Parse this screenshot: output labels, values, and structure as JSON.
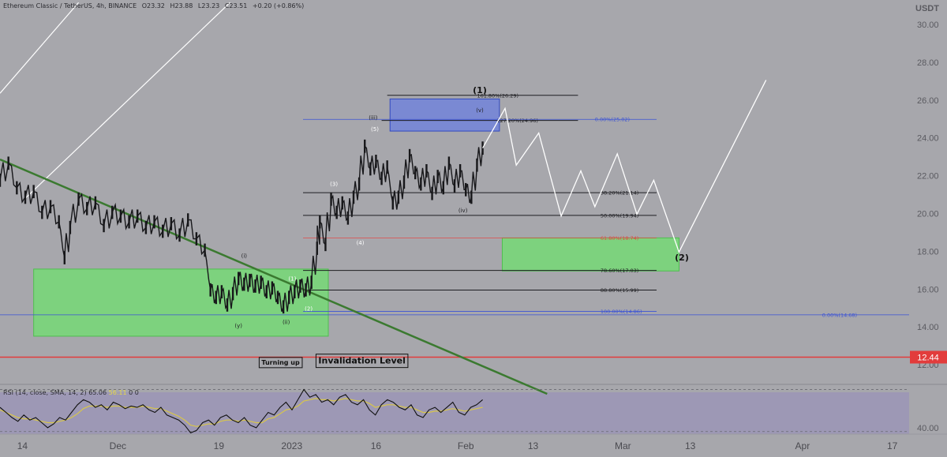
{
  "header": {
    "symbol": "Ethereum Classic / TetherUS, 4h, BINANCE",
    "o": "O23.32",
    "h": "H23.88",
    "l": "L23.23",
    "c": "C23.51",
    "change": "+0.20 (+0.86%)"
  },
  "rsi_header": {
    "label": "RSI (14, close, SMA, 14, 2)",
    "v1": "65.06",
    "v2": "56.11",
    "v3": "0",
    "v4": "0"
  },
  "colors": {
    "background": "#a7a7ac",
    "candle": "#17171a",
    "fib_line": "#1e1e22",
    "fib_blue": "#3a52d6",
    "fib_red": "#e04848",
    "trendline": "#3b7a30",
    "green_zone": "#6fe06f",
    "blue_zone": "#6b7fe0",
    "invalidation": "#e23c3c",
    "projection": "#ffffff",
    "rsi_panel": "#9d98b5",
    "rsi_signal": "#d8c64a"
  },
  "chart_data": {
    "type": "line",
    "title": "Ethereum Classic / TetherUS, 4h, BINANCE",
    "y_axis_unit": "USDT",
    "ylim": [
      10.0,
      31.0
    ],
    "y_ticks": [
      "30.00",
      "28.00",
      "26.00",
      "24.00",
      "22.00",
      "20.00",
      "18.00",
      "16.00",
      "14.00",
      "12.00"
    ],
    "x_ticks": [
      {
        "label": "14",
        "t": 0
      },
      {
        "label": "Dec",
        "t": 17
      },
      {
        "label": "19",
        "t": 35
      },
      {
        "label": "2023",
        "t": 48
      },
      {
        "label": "16",
        "t": 63
      },
      {
        "label": "Feb",
        "t": 79
      },
      {
        "label": "13",
        "t": 91
      },
      {
        "label": "Mar",
        "t": 107
      },
      {
        "label": "13",
        "t": 119
      },
      {
        "label": "Apr",
        "t": 139
      },
      {
        "label": "17",
        "t": 155
      }
    ],
    "x_range_days": [
      -4,
      158
    ],
    "price_path": [
      {
        "t": -4,
        "v": 21.8
      },
      {
        "t": -2.5,
        "v": 22.7
      },
      {
        "t": -1,
        "v": 21.4
      },
      {
        "t": 0.5,
        "v": 20.9
      },
      {
        "t": 2,
        "v": 21.2
      },
      {
        "t": 3.5,
        "v": 20.1
      },
      {
        "t": 5,
        "v": 20.4
      },
      {
        "t": 6.5,
        "v": 19.6
      },
      {
        "t": 7.5,
        "v": 17.7
      },
      {
        "t": 8.5,
        "v": 19.3
      },
      {
        "t": 10,
        "v": 20.8
      },
      {
        "t": 11.5,
        "v": 20.3
      },
      {
        "t": 13,
        "v": 20.6
      },
      {
        "t": 14.5,
        "v": 19.4
      },
      {
        "t": 16,
        "v": 20.1
      },
      {
        "t": 17.5,
        "v": 19.9
      },
      {
        "t": 19,
        "v": 19.6
      },
      {
        "t": 20.5,
        "v": 19.9
      },
      {
        "t": 22,
        "v": 19.3
      },
      {
        "t": 23.5,
        "v": 19.6
      },
      {
        "t": 25,
        "v": 19.1
      },
      {
        "t": 26.5,
        "v": 19.5
      },
      {
        "t": 28,
        "v": 18.9
      },
      {
        "t": 29.5,
        "v": 19.7
      },
      {
        "t": 31,
        "v": 18.7
      },
      {
        "t": 32.5,
        "v": 18.1
      },
      {
        "t": 33.5,
        "v": 16.0
      },
      {
        "t": 34.5,
        "v": 15.6
      },
      {
        "t": 35.5,
        "v": 15.9
      },
      {
        "t": 36.5,
        "v": 15.2
      },
      {
        "t": 37.5,
        "v": 15.8
      },
      {
        "t": 38.5,
        "v": 16.6
      },
      {
        "t": 39.5,
        "v": 16.3
      },
      {
        "t": 40.5,
        "v": 16.5
      },
      {
        "t": 41.5,
        "v": 16.2
      },
      {
        "t": 42.5,
        "v": 16.4
      },
      {
        "t": 43.5,
        "v": 15.9
      },
      {
        "t": 44.5,
        "v": 16.1
      },
      {
        "t": 45.5,
        "v": 15.6
      },
      {
        "t": 46.5,
        "v": 15.1
      },
      {
        "t": 47.5,
        "v": 15.6
      },
      {
        "t": 48.5,
        "v": 15.9
      },
      {
        "t": 49.5,
        "v": 16.2
      },
      {
        "t": 50.5,
        "v": 16.0
      },
      {
        "t": 51.5,
        "v": 16.4
      },
      {
        "t": 52.5,
        "v": 18.2
      },
      {
        "t": 53,
        "v": 19.6
      },
      {
        "t": 54,
        "v": 18.4
      },
      {
        "t": 55,
        "v": 20.8
      },
      {
        "t": 56,
        "v": 20.1
      },
      {
        "t": 57,
        "v": 20.6
      },
      {
        "t": 58,
        "v": 19.8
      },
      {
        "t": 59,
        "v": 20.9
      },
      {
        "t": 60,
        "v": 21.6
      },
      {
        "t": 61,
        "v": 23.6
      },
      {
        "t": 62,
        "v": 22.4
      },
      {
        "t": 63,
        "v": 22.8
      },
      {
        "t": 64,
        "v": 21.9
      },
      {
        "t": 65,
        "v": 22.5
      },
      {
        "t": 66,
        "v": 20.6
      },
      {
        "t": 67,
        "v": 20.9
      },
      {
        "t": 68,
        "v": 21.7
      },
      {
        "t": 69,
        "v": 23.1
      },
      {
        "t": 70,
        "v": 22.2
      },
      {
        "t": 71,
        "v": 21.6
      },
      {
        "t": 72,
        "v": 22.3
      },
      {
        "t": 73,
        "v": 21.1
      },
      {
        "t": 74,
        "v": 22.0
      },
      {
        "t": 75,
        "v": 21.4
      },
      {
        "t": 76,
        "v": 22.7
      },
      {
        "t": 77,
        "v": 21.5
      },
      {
        "t": 78,
        "v": 22.3
      },
      {
        "t": 79,
        "v": 21.3
      },
      {
        "t": 80,
        "v": 20.9
      },
      {
        "t": 81,
        "v": 22.6
      },
      {
        "t": 82,
        "v": 23.5
      }
    ],
    "projection": [
      {
        "t": 82,
        "v": 23.5
      },
      {
        "t": 86,
        "v": 25.6
      },
      {
        "t": 88,
        "v": 22.6
      },
      {
        "t": 92,
        "v": 24.3
      },
      {
        "t": 96,
        "v": 19.9
      },
      {
        "t": 99.5,
        "v": 22.3
      },
      {
        "t": 102,
        "v": 20.4
      },
      {
        "t": 106,
        "v": 23.2
      },
      {
        "t": 109.5,
        "v": 20.0
      },
      {
        "t": 112.5,
        "v": 21.8
      },
      {
        "t": 117,
        "v": 18.0
      },
      {
        "t": 132.5,
        "v": 27.1
      }
    ],
    "channel_lines": [
      {
        "from": {
          "t": -4,
          "v": 26.4
        },
        "to": {
          "t": 10,
          "v": 31.2
        }
      },
      {
        "from": {
          "t": 0,
          "v": 20.7
        },
        "to": {
          "t": 37,
          "v": 31.2
        }
      }
    ],
    "trendline": {
      "from": {
        "t": -4,
        "v": 22.9
      },
      "to": {
        "t": 93.5,
        "v": 10.5
      }
    },
    "zones": [
      {
        "name": "support-zone-left",
        "t0": 2,
        "t1": 54.5,
        "v0": 13.55,
        "v1": 17.1,
        "color": "green"
      },
      {
        "name": "target-zone-2",
        "t0": 85.5,
        "t1": 117,
        "v0": 17.0,
        "v1": 18.75,
        "color": "green"
      },
      {
        "name": "target-zone-v",
        "t0": 65.5,
        "t1": 85,
        "v0": 24.4,
        "v1": 26.1,
        "color": "blue"
      }
    ],
    "fib_levels": [
      {
        "label": "161.80%(26.29)",
        "value": 26.29,
        "t0": 65,
        "t1": 99,
        "label_t": 81,
        "color": "black"
      },
      {
        "label": "127.20%(24.96)",
        "value": 24.96,
        "t0": 64,
        "t1": 99,
        "label_t": 84.5,
        "color": "black"
      },
      {
        "label": "0.00%(25.02)",
        "value": 25.02,
        "t0": 50,
        "t1": 113,
        "label_t": 102,
        "color": "blue"
      },
      {
        "label": "38.20%(21.14)",
        "value": 21.14,
        "t0": 50,
        "t1": 113,
        "label_t": 103,
        "color": "black"
      },
      {
        "label": "50.00%(19.94)",
        "value": 19.94,
        "t0": 50,
        "t1": 113,
        "label_t": 103,
        "color": "black"
      },
      {
        "label": "61.80%(18.74)",
        "value": 18.74,
        "t0": 50,
        "t1": 113,
        "label_t": 103,
        "color": "red"
      },
      {
        "label": "78.60%(17.03)",
        "value": 17.03,
        "t0": 50,
        "t1": 113,
        "label_t": 103,
        "color": "black"
      },
      {
        "label": "88.80%(15.99)",
        "value": 15.99,
        "t0": 50,
        "t1": 113,
        "label_t": 103,
        "color": "black"
      },
      {
        "label": "100.00%(14.86)",
        "value": 14.86,
        "t0": 50,
        "t1": 113,
        "label_t": 103,
        "color": "blue"
      },
      {
        "label": "0.00%(14.68)",
        "value": 14.68,
        "t0": -4,
        "t1": 158,
        "label_t": 142.5,
        "color": "blue"
      }
    ],
    "invalidation_level": 12.44,
    "invalidation_label": "12.44",
    "wave_labels": [
      {
        "text": "(1)",
        "t": 81.5,
        "v": 26.4,
        "bold": true
      },
      {
        "text": "(2)",
        "t": 117.5,
        "v": 17.55,
        "bold": true
      },
      {
        "text": "(v)",
        "t": 81.5,
        "v": 25.4,
        "bold": false
      },
      {
        "text": "(iii)",
        "t": 62.5,
        "v": 25.0,
        "bold": false
      },
      {
        "text": "(5)",
        "t": 62.8,
        "v": 24.4,
        "bold": false
      },
      {
        "text": "(3)",
        "t": 55.5,
        "v": 21.5,
        "bold": false
      },
      {
        "text": "(4)",
        "t": 60.2,
        "v": 18.4,
        "bold": false
      },
      {
        "text": "(iv)",
        "t": 78.5,
        "v": 20.1,
        "bold": false
      },
      {
        "text": "(i)",
        "t": 39.5,
        "v": 17.7,
        "bold": false
      },
      {
        "text": "(1)",
        "t": 48.1,
        "v": 16.5,
        "bold": false
      },
      {
        "text": "(2)",
        "t": 51,
        "v": 14.9,
        "bold": false
      },
      {
        "text": "(y)",
        "t": 38.5,
        "v": 14.0,
        "bold": false
      },
      {
        "text": "(ii)",
        "t": 47,
        "v": 14.2,
        "bold": false
      }
    ],
    "annotations": [
      {
        "text": "Turning up",
        "t": 46,
        "v": 12.05,
        "size": "small"
      },
      {
        "text": "Invalidation Level",
        "t": 60.5,
        "v": 12.1,
        "size": "large"
      }
    ]
  },
  "rsi": {
    "ylim": [
      35,
      74
    ],
    "upper_band": 70,
    "lower_band": 37,
    "tick_label": "40.00",
    "tick_value": 40,
    "values": [
      56,
      52,
      48,
      45,
      50,
      46,
      48,
      44,
      40,
      43,
      48,
      46,
      52,
      58,
      62,
      60,
      56,
      58,
      54,
      60,
      58,
      55,
      57,
      56,
      58,
      54,
      52,
      56,
      50,
      48,
      46,
      42,
      36,
      38,
      44,
      46,
      42,
      48,
      50,
      46,
      44,
      48,
      42,
      40,
      46,
      52,
      50,
      56,
      60,
      54,
      62,
      70,
      64,
      66,
      60,
      62,
      58,
      64,
      66,
      60,
      58,
      62,
      54,
      50,
      58,
      62,
      60,
      56,
      54,
      58,
      50,
      48,
      54,
      56,
      52,
      56,
      60,
      52,
      50,
      56,
      58,
      62
    ],
    "signal": [
      54,
      52,
      50,
      48,
      47,
      47,
      46,
      45,
      44,
      44,
      45,
      46,
      48,
      51,
      55,
      57,
      57,
      57,
      56,
      57,
      57,
      56,
      56,
      56,
      57,
      56,
      55,
      55,
      53,
      51,
      49,
      46,
      42,
      41,
      42,
      43,
      43,
      45,
      46,
      46,
      45,
      46,
      45,
      44,
      44,
      47,
      48,
      51,
      54,
      55,
      57,
      61,
      62,
      63,
      62,
      62,
      61,
      62,
      63,
      62,
      61,
      61,
      59,
      56,
      57,
      58,
      58,
      57,
      56,
      56,
      54,
      52,
      52,
      53,
      53,
      54,
      55,
      54,
      53,
      54,
      55,
      56
    ]
  }
}
